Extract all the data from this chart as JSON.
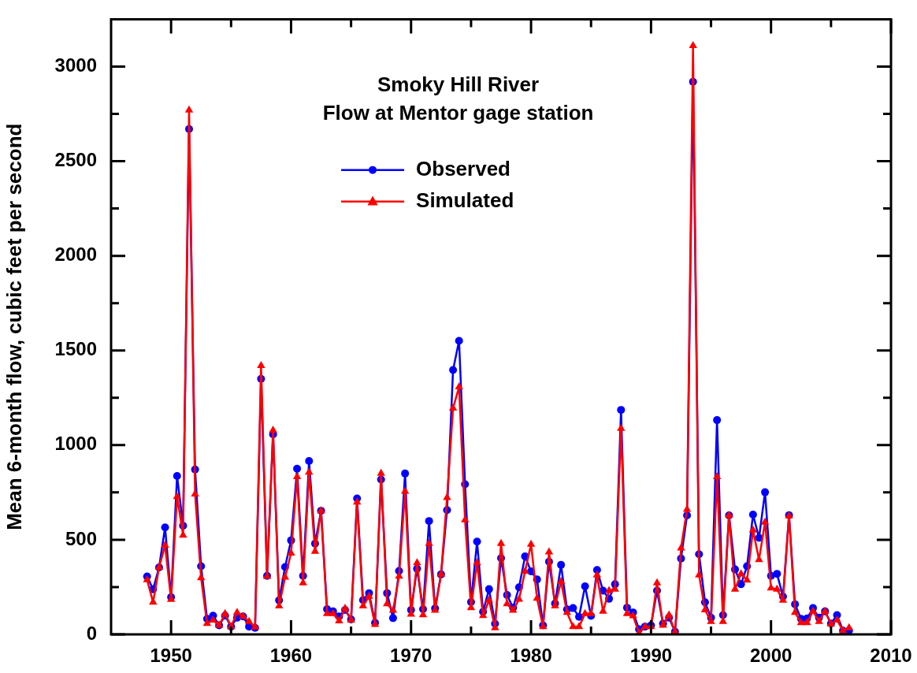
{
  "chart_data": {
    "type": "line",
    "title": "Smoky Hill River",
    "subtitle": "Flow at Mentor gage station",
    "ylabel": "Mean 6-month flow, cubic feet per second",
    "x": [
      1948,
      1948.5,
      1949,
      1949.5,
      1950,
      1950.5,
      1951,
      1951.5,
      1952,
      1952.5,
      1953,
      1953.5,
      1954,
      1954.5,
      1955,
      1955.5,
      1956,
      1956.5,
      1957,
      1957.5,
      1958,
      1958.5,
      1959,
      1959.5,
      1960,
      1960.5,
      1961,
      1961.5,
      1962,
      1962.5,
      1963,
      1963.5,
      1964,
      1964.5,
      1965,
      1965.5,
      1966,
      1966.5,
      1967,
      1967.5,
      1968,
      1968.5,
      1969,
      1969.5,
      1970,
      1970.5,
      1971,
      1971.5,
      1972,
      1972.5,
      1973,
      1973.5,
      1974,
      1974.5,
      1975,
      1975.5,
      1976,
      1976.5,
      1977,
      1977.5,
      1978,
      1978.5,
      1979,
      1979.5,
      1980,
      1980.5,
      1981,
      1981.5,
      1982,
      1982.5,
      1983,
      1983.5,
      1984,
      1984.5,
      1985,
      1985.5,
      1986,
      1986.5,
      1987,
      1987.5,
      1988,
      1988.5,
      1989,
      1989.5,
      1990,
      1990.5,
      1991,
      1991.5,
      1992,
      1992.5,
      1993,
      1993.5,
      1994,
      1994.5,
      1995,
      1995.5,
      1996,
      1996.5,
      1997,
      1997.5,
      1998,
      1998.5,
      1999,
      1999.5,
      2000,
      2000.5,
      2001,
      2001.5,
      2002,
      2002.5,
      2003,
      2003.5,
      2004,
      2004.5,
      2005,
      2005.5,
      2006,
      2006.5
    ],
    "series": [
      {
        "name": "Observed",
        "color": "#0000ff",
        "marker": "circle",
        "values": [
          306,
          238,
          354,
          565,
          197,
          837,
          574,
          2670,
          871,
          360,
          82,
          99,
          48,
          99,
          41,
          88,
          95,
          41,
          34,
          1350,
          309,
          1057,
          180,
          356,
          497,
          875,
          309,
          916,
          480,
          653,
          133,
          122,
          95,
          129,
          79,
          718,
          181,
          218,
          61,
          818,
          218,
          86,
          335,
          850,
          129,
          347,
          133,
          599,
          137,
          317,
          657,
          1397,
          1551,
          793,
          171,
          490,
          120,
          239,
          56,
          403,
          208,
          140,
          249,
          412,
          333,
          290,
          48,
          384,
          163,
          367,
          132,
          139,
          93,
          254,
          98,
          340,
          231,
          188,
          265,
          1186,
          141,
          116,
          27,
          41,
          48,
          231,
          57,
          88,
          14,
          401,
          629,
          2920,
          424,
          170,
          88,
          1132,
          102,
          629,
          343,
          265,
          360,
          633,
          510,
          751,
          309,
          320,
          200,
          630,
          159,
          82,
          84,
          139,
          88,
          122,
          57,
          102,
          20,
          20
        ]
      },
      {
        "name": "Simulated",
        "color": "#ff0000",
        "marker": "triangle",
        "values": [
          288,
          170,
          354,
          470,
          184,
          728,
          524,
          2770,
          741,
          299,
          57,
          75,
          48,
          109,
          41,
          116,
          95,
          68,
          38,
          1420,
          306,
          1078,
          150,
          302,
          429,
          833,
          272,
          857,
          438,
          653,
          109,
          109,
          71,
          137,
          75,
          698,
          150,
          201,
          52,
          850,
          161,
          127,
          307,
          756,
          106,
          378,
          103,
          480,
          127,
          317,
          722,
          1195,
          1307,
          605,
          140,
          378,
          99,
          181,
          34,
          480,
          161,
          127,
          185,
          333,
          476,
          190,
          41,
          435,
          150,
          279,
          116,
          41,
          41,
          109,
          109,
          313,
          122,
          231,
          238,
          1088,
          109,
          98,
          7,
          41,
          41,
          272,
          48,
          102,
          14,
          456,
          660,
          3110,
          313,
          129,
          68,
          833,
          68,
          629,
          238,
          320,
          286,
          551,
          395,
          592,
          245,
          238,
          180,
          626,
          116,
          61,
          61,
          122,
          68,
          122,
          54,
          75,
          20,
          34
        ]
      }
    ],
    "xlim": [
      1945,
      2010
    ],
    "xticks": [
      1950,
      {
        "value": 1955,
        "label": null
      },
      1960,
      {
        "value": 1965,
        "label": null
      },
      1970,
      {
        "value": 1975,
        "label": null
      },
      1980,
      {
        "value": 1985,
        "label": null
      },
      1990,
      {
        "value": 1995,
        "label": null
      },
      2000,
      {
        "value": 2005,
        "label": null
      },
      2010
    ],
    "ylim": [
      0,
      3250
    ],
    "yticks": [
      0,
      {
        "value": 250,
        "label": null
      },
      500,
      {
        "value": 750,
        "label": null
      },
      1000,
      {
        "value": 1250,
        "label": null
      },
      1500,
      {
        "value": 1750,
        "label": null
      },
      2000,
      {
        "value": 2250,
        "label": null
      },
      2500,
      {
        "value": 2750,
        "label": null
      },
      3000
    ],
    "legend": "top left",
    "line_style": "solid"
  }
}
